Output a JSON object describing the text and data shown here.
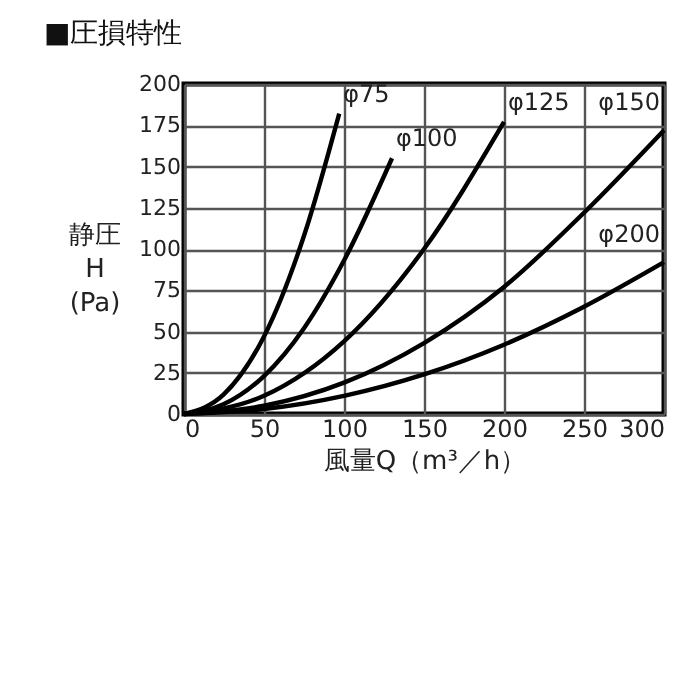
{
  "chart_data": {
    "type": "line",
    "title": "■圧損特性",
    "xlabel": "風量Q（m³／h）",
    "ylabel": "静圧 H (Pa)",
    "xlim": [
      0,
      300
    ],
    "xticks": [
      0,
      50,
      100,
      150,
      200,
      250,
      300
    ],
    "ylim": [
      0,
      200
    ],
    "yticks": [
      0,
      25,
      50,
      75,
      100,
      125,
      150,
      175,
      200
    ],
    "grid": true,
    "legend": false,
    "marker": "none",
    "line_style": "solid",
    "series": [
      {
        "name": "φ75",
        "color": "#000000",
        "x": [
          0,
          25,
          50,
          75,
          97
        ],
        "values": [
          0,
          12,
          47,
          108,
          182
        ]
      },
      {
        "name": "φ100",
        "color": "#000000",
        "x": [
          0,
          25,
          50,
          75,
          100,
          130
        ],
        "values": [
          0,
          6,
          23,
          52,
          93,
          155
        ]
      },
      {
        "name": "φ125",
        "color": "#000000",
        "x": [
          0,
          50,
          100,
          150,
          200
        ],
        "values": [
          0,
          11,
          44,
          100,
          177
        ]
      },
      {
        "name": "φ150",
        "color": "#000000",
        "x": [
          0,
          50,
          100,
          150,
          200,
          250,
          300
        ],
        "values": [
          0,
          5,
          19,
          43,
          77,
          122,
          172
        ]
      },
      {
        "name": "φ200",
        "color": "#000000",
        "x": [
          0,
          50,
          100,
          150,
          200,
          250,
          300
        ],
        "values": [
          0,
          3,
          11,
          24,
          42,
          65,
          92
        ]
      }
    ]
  }
}
